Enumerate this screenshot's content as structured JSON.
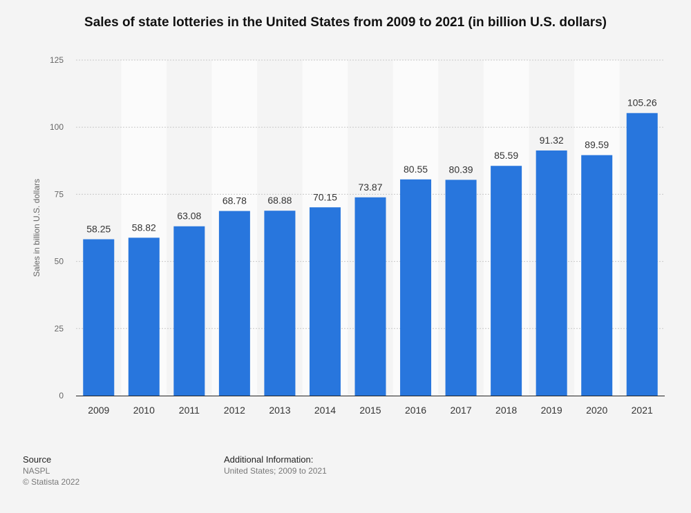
{
  "title": "Sales of state lotteries in the United States from 2009 to 2021 (in billion U.S. dollars)",
  "chart_data": {
    "type": "bar",
    "title": "Sales of state lotteries in the United States from 2009 to 2021 (in billion U.S. dollars)",
    "xlabel": "",
    "ylabel": "Sales in billion U.S. dollars",
    "ylim": [
      0,
      125
    ],
    "yticks": [
      0,
      25,
      50,
      75,
      100,
      125
    ],
    "grid": true,
    "legend": "none",
    "categories": [
      "2009",
      "2010",
      "2011",
      "2012",
      "2013",
      "2014",
      "2015",
      "2016",
      "2017",
      "2018",
      "2019",
      "2020",
      "2021"
    ],
    "values": [
      58.25,
      58.82,
      63.08,
      68.78,
      68.88,
      70.15,
      73.87,
      80.55,
      80.39,
      85.59,
      91.32,
      89.59,
      105.26
    ],
    "value_labels": [
      "58.25",
      "58.82",
      "63.08",
      "68.78",
      "68.88",
      "70.15",
      "73.87",
      "80.55",
      "80.39",
      "85.59",
      "91.32",
      "89.59",
      "105.26"
    ],
    "bar_color": "#2876dd"
  },
  "footer": {
    "source_heading": "Source",
    "source_name": "NASPL",
    "copyright": "© Statista 2022",
    "info_heading": "Additional Information:",
    "info_text": "United States; 2009 to 2021"
  }
}
